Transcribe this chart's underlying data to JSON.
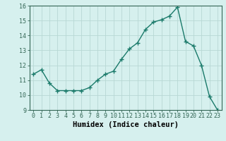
{
  "x": [
    0,
    1,
    2,
    3,
    4,
    5,
    6,
    7,
    8,
    9,
    10,
    11,
    12,
    13,
    14,
    15,
    16,
    17,
    18,
    19,
    20,
    21,
    22,
    23
  ],
  "y": [
    11.4,
    11.7,
    10.8,
    10.3,
    10.3,
    10.3,
    10.3,
    10.5,
    11.0,
    11.4,
    11.6,
    12.4,
    13.1,
    13.5,
    14.4,
    14.9,
    15.05,
    15.3,
    15.9,
    13.6,
    13.3,
    12.0,
    9.9,
    9.0
  ],
  "line_color": "#1a7a6a",
  "marker": "+",
  "marker_size": 4,
  "marker_lw": 1.0,
  "line_width": 1.0,
  "bg_color": "#d6f0ee",
  "grid_color": "#b8d8d4",
  "xlabel": "Humidex (Indice chaleur)",
  "xlabel_fontsize": 7.5,
  "tick_fontsize": 6,
  "ylim": [
    9,
    16
  ],
  "yticks": [
    9,
    10,
    11,
    12,
    13,
    14,
    15,
    16
  ],
  "spine_color": "#336655"
}
